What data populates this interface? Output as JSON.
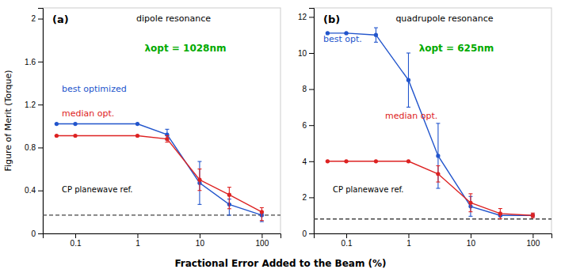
{
  "chart_data": [
    {
      "type": "line",
      "title": "dipole resonance",
      "xlabel": "Fractional Error Added to the Beam (%)",
      "ylabel": "Figure of Merit (Torque)",
      "log": "x",
      "x": [
        0.05,
        0.1,
        1.0,
        3.0,
        10.0,
        30.0,
        100.0
      ],
      "xlim": [
        0.03,
        200
      ],
      "xticks": [
        0.1,
        1,
        10,
        100
      ],
      "ylim": [
        0,
        2.1
      ],
      "yticks": [
        0,
        0.4,
        0.8,
        1.2,
        1.6,
        2.0
      ],
      "series": [
        {
          "name": "best optimized",
          "color": "#2255cc",
          "marker": "circle",
          "values": [
            1.02,
            1.02,
            1.02,
            0.92,
            0.47,
            0.27,
            0.17
          ],
          "yerr_low": [
            0.0,
            0.0,
            0.0,
            0.05,
            0.2,
            0.1,
            0.06
          ],
          "yerr_high": [
            0.0,
            0.0,
            0.0,
            0.05,
            0.2,
            0.05,
            0.02
          ]
        },
        {
          "name": "median opt.",
          "color": "#dd2222",
          "marker": "circle",
          "values": [
            0.91,
            0.91,
            0.91,
            0.88,
            0.5,
            0.36,
            0.2
          ],
          "yerr_low": [
            0.0,
            0.0,
            0.0,
            0.03,
            0.1,
            0.13,
            0.08
          ],
          "yerr_high": [
            0.0,
            0.0,
            0.0,
            0.03,
            0.1,
            0.07,
            0.04
          ]
        }
      ],
      "hlines": [
        {
          "name": "CP planewave ref.",
          "value": 0.17,
          "color": "#444444",
          "line_style": "dashed"
        }
      ],
      "annotations": [
        {
          "text": "(a)"
        },
        {
          "text": "λopt = 1028nm",
          "color": "#00aa00"
        }
      ]
    },
    {
      "type": "line",
      "title": "quadrupole resonance",
      "log": "x",
      "x": [
        0.05,
        0.1,
        0.3,
        1.0,
        3.0,
        10.0,
        30.0,
        100.0
      ],
      "xlim": [
        0.03,
        200
      ],
      "xticks": [
        0.1,
        1,
        10,
        100
      ],
      "ylim": [
        0,
        12.5
      ],
      "yticks": [
        0,
        2,
        4,
        6,
        8,
        10,
        12
      ],
      "series": [
        {
          "name": "best opt.",
          "color": "#2255cc",
          "marker": "circle",
          "values": [
            11.1,
            11.1,
            11.0,
            8.5,
            4.3,
            1.5,
            1.0,
            1.0
          ],
          "yerr_low": [
            0.0,
            0.0,
            0.4,
            1.5,
            1.8,
            0.55,
            0.05,
            0.05
          ],
          "yerr_high": [
            0.0,
            0.0,
            0.4,
            1.5,
            1.8,
            0.55,
            0.05,
            0.05
          ]
        },
        {
          "name": "median opt.",
          "color": "#dd2222",
          "marker": "circle",
          "values": [
            4.0,
            4.0,
            4.0,
            4.0,
            3.3,
            1.7,
            1.1,
            1.0
          ],
          "yerr_low": [
            0.0,
            0.0,
            0.0,
            0.0,
            0.45,
            0.5,
            0.28,
            0.13
          ],
          "yerr_high": [
            0.0,
            0.0,
            0.0,
            0.0,
            0.45,
            0.5,
            0.28,
            0.13
          ]
        }
      ],
      "hlines": [
        {
          "name": "CP planewave ref.",
          "value": 0.8,
          "color": "#444444",
          "line_style": "dashed"
        }
      ],
      "annotations": [
        {
          "text": "(b)"
        },
        {
          "text": "λopt = 625nm",
          "color": "#00aa00"
        }
      ]
    }
  ]
}
